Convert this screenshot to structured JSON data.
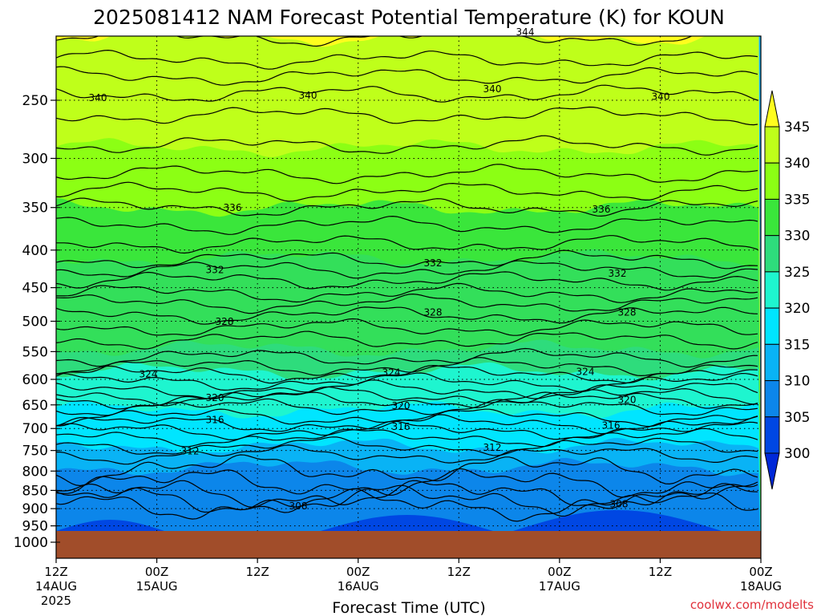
{
  "chart_data": {
    "type": "heatmap",
    "title": "2025081412 NAM Forecast Potential Temperature (K) for KOUN",
    "xlabel": "Forecast Time (UTC)",
    "ylabel": "",
    "credit": "coolwx.com/modelts",
    "y_scale": "log",
    "y_direction": "pressure decreasing upward",
    "y_ticks": [
      "250",
      "300",
      "350",
      "400",
      "450",
      "500",
      "550",
      "600",
      "650",
      "700",
      "750",
      "800",
      "850",
      "900",
      "950",
      "1000"
    ],
    "x_ticks": [
      {
        "time": "12Z",
        "date": "14AUG",
        "year": "2025"
      },
      {
        "time": "00Z",
        "date": "15AUG",
        "year": ""
      },
      {
        "time": "12Z",
        "date": "",
        "year": ""
      },
      {
        "time": "00Z",
        "date": "16AUG",
        "year": ""
      },
      {
        "time": "12Z",
        "date": "",
        "year": ""
      },
      {
        "time": "00Z",
        "date": "17AUG",
        "year": ""
      },
      {
        "time": "12Z",
        "date": "",
        "year": ""
      },
      {
        "time": "00Z",
        "date": "18AUG",
        "year": ""
      }
    ],
    "colorbar": {
      "levels": [
        "345",
        "340",
        "335",
        "330",
        "325",
        "320",
        "315",
        "310",
        "305",
        "300"
      ],
      "colors": [
        "#fffd1e",
        "#bfff1a",
        "#8cff14",
        "#3ae63b",
        "#2edc7c",
        "#1ef5cf",
        "#00e5ff",
        "#09b3f5",
        "#0c86ea",
        "#0047e3",
        "#0028d8"
      ]
    },
    "contour_interval_K": 2,
    "contours": [
      {
        "label": "344",
        "approx_pressure_hPa": 205
      },
      {
        "label": "340",
        "approx_pressure_hPa": 245
      },
      {
        "label": "336",
        "approx_pressure_hPa": 350
      },
      {
        "label": "332",
        "approx_pressure_hPa": 425
      },
      {
        "label": "328",
        "approx_pressure_hPa": 490
      },
      {
        "label": "324",
        "approx_pressure_hPa": 590
      },
      {
        "label": "320",
        "approx_pressure_hPa": 640
      },
      {
        "label": "316",
        "approx_pressure_hPa": 690
      },
      {
        "label": "312",
        "approx_pressure_hPa": 760
      },
      {
        "label": "308",
        "approx_pressure_hPa": 875
      }
    ],
    "ground_pressure_hPa": 970,
    "grid": true
  }
}
